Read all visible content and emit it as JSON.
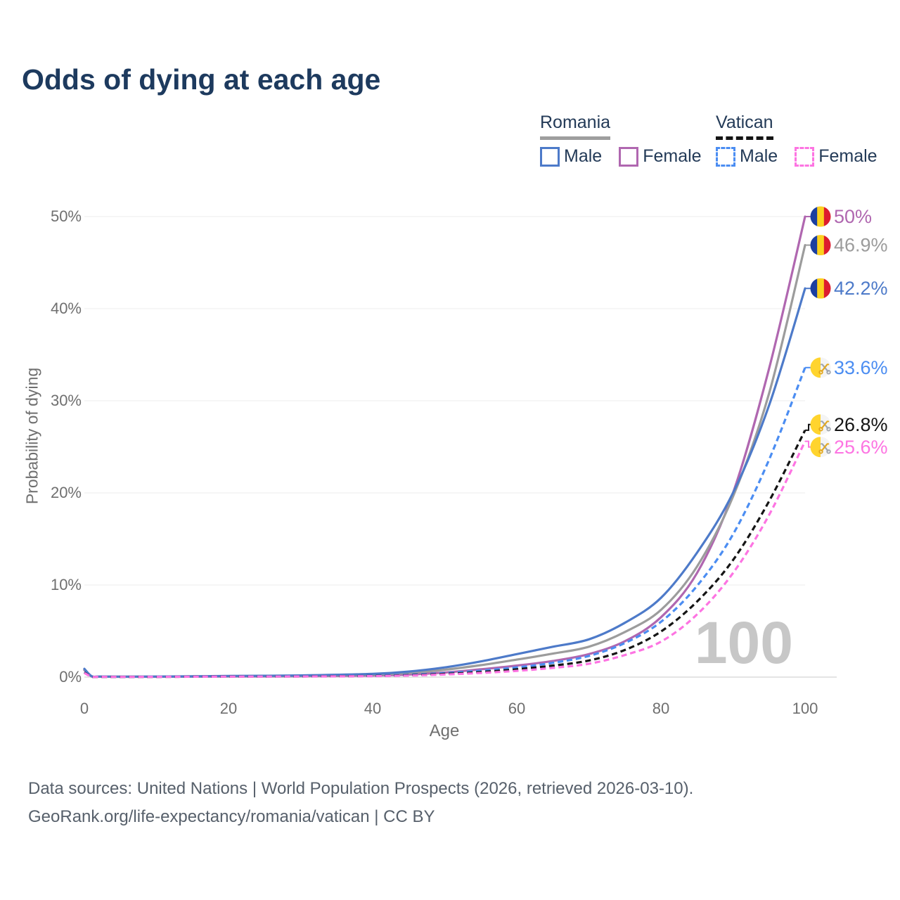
{
  "title": "Odds of dying at each age",
  "legend": {
    "groups": [
      {
        "label": "Romania",
        "underline_color": "#9e9e9e",
        "underline_style": "solid",
        "items": [
          {
            "label": "Male",
            "color": "#4d7ac9"
          },
          {
            "label": "Female",
            "color": "#b067b0"
          }
        ]
      },
      {
        "label": "Vatican",
        "underline_color": "#141414",
        "underline_style": "dashed",
        "items": [
          {
            "label": "Male",
            "color": "#4b8df2"
          },
          {
            "label": "Female",
            "color": "#fd74e2"
          }
        ]
      }
    ]
  },
  "chart_data": {
    "type": "line",
    "title": "Odds of dying at each age",
    "xlabel": "Age",
    "ylabel": "Probability of dying",
    "xlim": [
      0,
      100
    ],
    "ylim_percent": [
      0,
      50
    ],
    "grid": "horizontal",
    "legend_position": "top-right",
    "watermark_age": "100",
    "x_ticks": [
      {
        "value": 0,
        "label": "0"
      },
      {
        "value": 20,
        "label": "20"
      },
      {
        "value": 40,
        "label": "40"
      },
      {
        "value": 60,
        "label": "60"
      },
      {
        "value": 80,
        "label": "80"
      },
      {
        "value": 100,
        "label": "100"
      }
    ],
    "y_ticks": [
      {
        "value": 0,
        "label": "0%"
      },
      {
        "value": 10,
        "label": "10%"
      },
      {
        "value": 20,
        "label": "20%"
      },
      {
        "value": 30,
        "label": "30%"
      },
      {
        "value": 40,
        "label": "40%"
      },
      {
        "value": 50,
        "label": "50%"
      }
    ],
    "ages": [
      0,
      1,
      2,
      5,
      10,
      20,
      30,
      40,
      45,
      50,
      55,
      60,
      65,
      70,
      75,
      80,
      85,
      90,
      95,
      100
    ],
    "series": [
      {
        "name": "Romania Female",
        "country": "Romania",
        "sex": "Female",
        "line_style": "solid",
        "color": "#b067b0",
        "end_label": "50%",
        "end_value_percent": 50.0,
        "values_percent": [
          0.75,
          0.08,
          0.05,
          0.04,
          0.04,
          0.07,
          0.09,
          0.17,
          0.28,
          0.5,
          0.85,
          1.25,
          1.75,
          2.5,
          3.9,
          6.5,
          11.3,
          20.0,
          33.5,
          50.0
        ]
      },
      {
        "name": "Romania (both sexes)",
        "country": "Romania",
        "sex": "Both",
        "line_style": "solid",
        "color": "#9c9c9c",
        "end_label": "46.9%",
        "end_value_percent": 46.9,
        "values_percent": [
          0.8,
          0.09,
          0.05,
          0.04,
          0.05,
          0.09,
          0.13,
          0.26,
          0.45,
          0.8,
          1.3,
          1.9,
          2.55,
          3.3,
          4.9,
          7.3,
          12.0,
          19.6,
          30.8,
          46.9
        ]
      },
      {
        "name": "Romania Male",
        "country": "Romania",
        "sex": "Male",
        "line_style": "solid",
        "color": "#4d7ac9",
        "end_label": "42.2%",
        "end_value_percent": 42.2,
        "values_percent": [
          0.9,
          0.1,
          0.06,
          0.05,
          0.06,
          0.12,
          0.18,
          0.35,
          0.6,
          1.05,
          1.7,
          2.5,
          3.3,
          4.1,
          5.9,
          8.6,
          13.5,
          20.0,
          29.5,
          42.2
        ]
      },
      {
        "name": "Vatican Male",
        "country": "Vatican",
        "sex": "Male",
        "line_style": "dashed",
        "color": "#4b8df2",
        "end_label": "33.6%",
        "end_value_percent": 33.6,
        "values_percent": [
          0.55,
          0.06,
          0.04,
          0.03,
          0.04,
          0.08,
          0.1,
          0.16,
          0.26,
          0.44,
          0.7,
          1.05,
          1.55,
          2.3,
          3.7,
          6.0,
          9.9,
          15.5,
          23.6,
          33.6
        ]
      },
      {
        "name": "Vatican (both sexes)",
        "country": "Vatican",
        "sex": "Both",
        "line_style": "dashed",
        "color": "#151515",
        "end_label": "26.8%",
        "end_value_percent": 26.8,
        "values_percent": [
          0.5,
          0.05,
          0.03,
          0.03,
          0.03,
          0.06,
          0.08,
          0.13,
          0.21,
          0.35,
          0.55,
          0.85,
          1.25,
          1.8,
          2.95,
          4.95,
          8.2,
          12.7,
          19.1,
          26.8
        ]
      },
      {
        "name": "Vatican Female",
        "country": "Vatican",
        "sex": "Female",
        "line_style": "dashed",
        "color": "#fd74e2",
        "end_label": "25.6%",
        "end_value_percent": 25.6,
        "values_percent": [
          0.45,
          0.05,
          0.03,
          0.02,
          0.03,
          0.05,
          0.07,
          0.11,
          0.17,
          0.28,
          0.45,
          0.68,
          1.0,
          1.45,
          2.4,
          3.85,
          6.8,
          11.3,
          17.6,
          25.6
        ]
      }
    ],
    "flag_colors": {
      "romania": {
        "blue": "#1b3fa0",
        "yellow": "#fcd11f",
        "red": "#dd1c2e"
      },
      "vatican": {
        "yellow": "#ffd42e",
        "white": "#f4f4f4",
        "key_gold": "#e3a81f",
        "key_silver": "#a0a6ad"
      }
    }
  },
  "footer": {
    "line1": "Data sources: United Nations | World Population Prospects (2026, retrieved 2026-03-10).",
    "line2": "GeoRank.org/life-expectancy/romania/vatican | CC BY"
  }
}
